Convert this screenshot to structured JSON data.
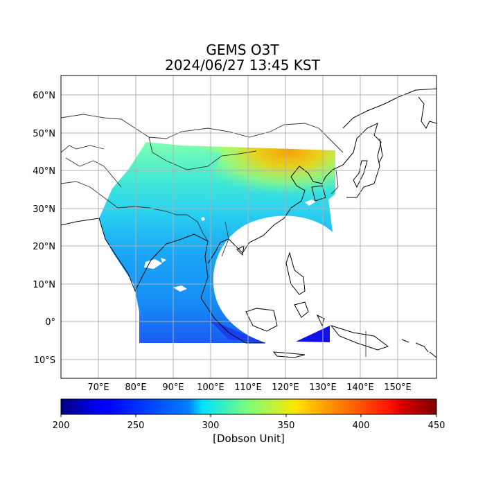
{
  "title_line1": "GEMS O3T",
  "title_line2": "2024/06/27 13:45 KST",
  "map": {
    "projection": "PlateCarree",
    "lon_range": [
      60,
      160
    ],
    "lat_range": [
      -15,
      65
    ],
    "grid": true,
    "lon_ticks": [
      {
        "value": 70,
        "label": "70°E"
      },
      {
        "value": 80,
        "label": "80°E"
      },
      {
        "value": 90,
        "label": "90°E"
      },
      {
        "value": 100,
        "label": "100°E"
      },
      {
        "value": 110,
        "label": "110°E"
      },
      {
        "value": 120,
        "label": "120°E"
      },
      {
        "value": 130,
        "label": "130°E"
      },
      {
        "value": 140,
        "label": "140°E"
      },
      {
        "value": 150,
        "label": "150°E"
      }
    ],
    "lat_ticks": [
      {
        "value": 60,
        "label": "60°N"
      },
      {
        "value": 50,
        "label": "50°N"
      },
      {
        "value": 40,
        "label": "40°N"
      },
      {
        "value": 30,
        "label": "30°N"
      },
      {
        "value": 20,
        "label": "20°N"
      },
      {
        "value": 10,
        "label": "10°N"
      },
      {
        "value": 0,
        "label": "0°"
      },
      {
        "value": -10,
        "label": "10°S"
      }
    ]
  },
  "colorbar": {
    "colormap": "jet",
    "min": 200,
    "max": 450,
    "ticks": [
      "200",
      "250",
      "300",
      "350",
      "400",
      "450"
    ],
    "label": "[Dobson Unit]"
  }
}
